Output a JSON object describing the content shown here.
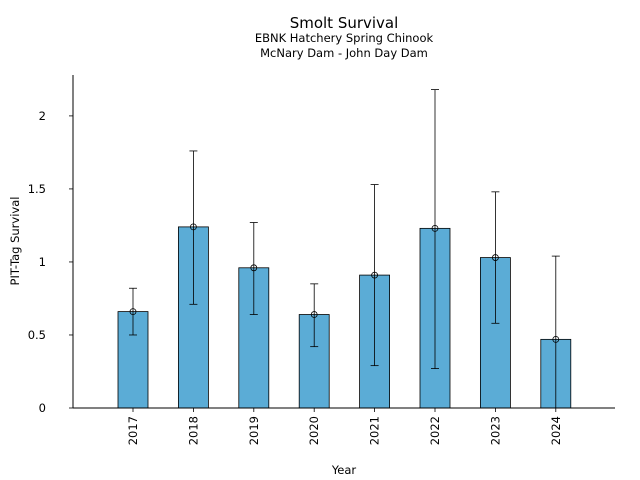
{
  "chart_data": {
    "type": "bar",
    "title": "Smolt Survival",
    "subtitle_lines": [
      "EBNK Hatchery Spring Chinook",
      "McNary Dam - John Day Dam"
    ],
    "xlabel": "Year",
    "ylabel": "PIT-Tag Survival",
    "categories": [
      "2017",
      "2018",
      "2019",
      "2020",
      "2021",
      "2022",
      "2023",
      "2024"
    ],
    "values": [
      0.66,
      1.24,
      0.96,
      0.64,
      0.91,
      1.23,
      1.03,
      0.47
    ],
    "error_lower": [
      0.5,
      0.71,
      0.64,
      0.42,
      0.29,
      0.27,
      0.58,
      0.0
    ],
    "error_upper": [
      0.82,
      1.76,
      1.27,
      0.85,
      1.53,
      2.18,
      1.48,
      1.04
    ],
    "ylim": [
      0,
      2.28
    ],
    "yticks": [
      0,
      0.5,
      1,
      1.5,
      2
    ],
    "ytick_labels": [
      "0",
      "0.5",
      "1",
      "1.5",
      "2"
    ],
    "bar_color": "#5bacd6",
    "edge_color": "#000000",
    "grid": false
  }
}
